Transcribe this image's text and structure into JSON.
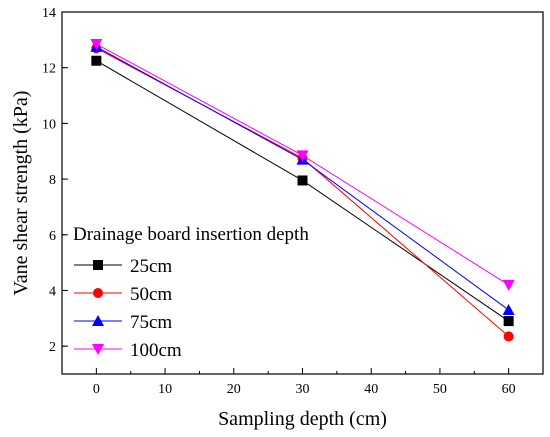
{
  "chart_data": {
    "type": "line",
    "xlabel": "Sampling depth (cm)",
    "ylabel": "Vane shear strength (kPa)",
    "xlim": [
      -5,
      65
    ],
    "ylim": [
      1,
      14
    ],
    "xticks": [
      0,
      10,
      20,
      30,
      40,
      50,
      60
    ],
    "yticks": [
      2,
      4,
      6,
      8,
      10,
      12,
      14
    ],
    "legend_title": "Drainage board insertion depth",
    "legend_position": "lower-left",
    "grid": false,
    "x": [
      0,
      30,
      60
    ],
    "series": [
      {
        "name": "25cm",
        "values": [
          12.25,
          7.95,
          2.9
        ],
        "color": "#000000",
        "marker": "square"
      },
      {
        "name": "50cm",
        "values": [
          12.7,
          8.75,
          2.35
        ],
        "color": "#ff0000",
        "marker": "circle"
      },
      {
        "name": "75cm",
        "values": [
          12.75,
          8.7,
          3.3
        ],
        "color": "#0000ff",
        "marker": "triangle-up"
      },
      {
        "name": "100cm",
        "values": [
          12.85,
          8.85,
          4.2
        ],
        "color": "#ff00ff",
        "marker": "triangle-down"
      }
    ]
  }
}
